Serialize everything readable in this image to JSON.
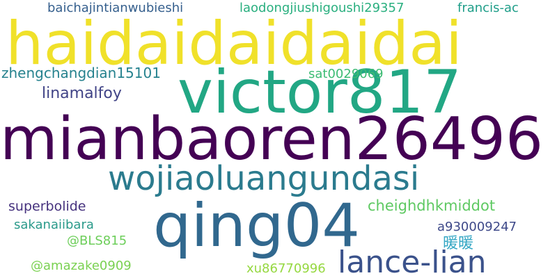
{
  "words": [
    {
      "text": "haidaidaidaidai",
      "color": "#f0e12a"
    },
    {
      "text": "victor817",
      "color": "#22a784"
    },
    {
      "text": "mianbaoren26496",
      "color": "#440154"
    },
    {
      "text": "wojiaoluangundasi",
      "color": "#2b7b8e"
    },
    {
      "text": "qing04",
      "color": "#31688e"
    },
    {
      "text": "lance-lian",
      "color": "#3b528b"
    },
    {
      "text": "cheighdhkmiddot",
      "color": "#5ec962"
    },
    {
      "text": "superbolide",
      "color": "#46327e"
    },
    {
      "text": "sakanaiibara",
      "color": "#2a9a8a"
    },
    {
      "text": "a930009247",
      "color": "#3e4989"
    },
    {
      "text": "暖暖",
      "color": "#35a7c4"
    },
    {
      "text": "@BLS815",
      "color": "#6cce59"
    },
    {
      "text": "@amazake0909",
      "color": "#7ad151"
    },
    {
      "text": "xu86770996",
      "color": "#95d840"
    },
    {
      "text": "linamalfoy",
      "color": "#414487"
    },
    {
      "text": "zhengchangdian15101",
      "color": "#26828e"
    },
    {
      "text": "sat0029069",
      "color": "#3dbc74"
    },
    {
      "text": "baichajintianwubieshi",
      "color": "#355f8d"
    },
    {
      "text": "laodongjiushigoushi29357",
      "color": "#29af7f"
    },
    {
      "text": "francis-ac",
      "color": "#1f9e89"
    }
  ]
}
